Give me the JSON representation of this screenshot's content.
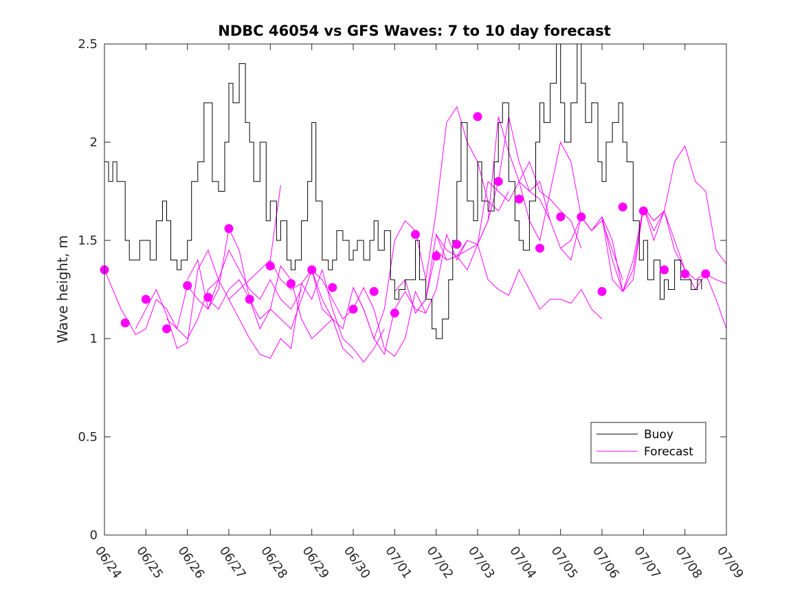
{
  "chart_data": {
    "type": "line",
    "title": "NDBC 46054 vs GFS Waves: 7 to 10 day forecast",
    "xlabel": "",
    "ylabel": "Wave height, m",
    "x_ticks": [
      "06/24",
      "06/25",
      "06/26",
      "06/27",
      "06/28",
      "06/29",
      "06/30",
      "07/01",
      "07/02",
      "07/03",
      "07/04",
      "07/05",
      "07/06",
      "07/07",
      "07/08",
      "07/09"
    ],
    "xlim": [
      0,
      15
    ],
    "ylim": [
      0,
      2.5
    ],
    "y_ticks": [
      0,
      0.5,
      1,
      1.5,
      2,
      2.5
    ],
    "y_tick_labels": [
      "0",
      "0.5",
      "1",
      "1.5",
      "2",
      "2.5"
    ],
    "grid": false,
    "legend": {
      "placement": "lower-right",
      "entries": [
        "Buoy",
        "Forecast"
      ]
    },
    "colors": {
      "buoy": "#000000",
      "forecast": "#ff00ff"
    },
    "series": [
      {
        "name": "Buoy",
        "x": [
          0,
          0.1,
          0.2,
          0.3,
          0.4,
          0.5,
          0.6,
          0.75,
          0.85,
          1.0,
          1.1,
          1.25,
          1.4,
          1.5,
          1.6,
          1.75,
          1.85,
          2.0,
          2.1,
          2.25,
          2.4,
          2.6,
          2.75,
          2.9,
          3.0,
          3.1,
          3.25,
          3.4,
          3.5,
          3.6,
          3.75,
          3.9,
          4.0,
          4.15,
          4.25,
          4.4,
          4.5,
          4.6,
          4.75,
          4.9,
          5.0,
          5.1,
          5.25,
          5.4,
          5.5,
          5.6,
          5.75,
          5.9,
          6.0,
          6.1,
          6.25,
          6.4,
          6.5,
          6.6,
          6.75,
          6.9,
          7.0,
          7.1,
          7.25,
          7.4,
          7.5,
          7.6,
          7.75,
          7.9,
          8.0,
          8.15,
          8.3,
          8.4,
          8.5,
          8.6,
          8.75,
          8.9,
          9.0,
          9.1,
          9.25,
          9.4,
          9.5,
          9.6,
          9.75,
          9.9,
          10.0,
          10.1,
          10.25,
          10.4,
          10.5,
          10.6,
          10.75,
          10.9,
          11.0,
          11.1,
          11.25,
          11.4,
          11.5,
          11.6,
          11.75,
          11.9,
          12.0,
          12.1,
          12.25,
          12.4,
          12.5,
          12.6,
          12.75,
          12.9,
          13.0,
          13.1,
          13.25,
          13.4,
          13.5,
          13.6,
          13.75,
          13.9,
          14.0,
          14.15,
          14.3,
          14.4
        ],
        "values": [
          1.9,
          1.8,
          1.9,
          1.8,
          1.8,
          1.5,
          1.4,
          1.4,
          1.5,
          1.5,
          1.4,
          1.6,
          1.7,
          1.6,
          1.4,
          1.35,
          1.4,
          1.5,
          1.8,
          1.9,
          2.2,
          1.8,
          1.75,
          2.0,
          2.3,
          2.2,
          2.4,
          2.1,
          2.0,
          1.8,
          2.0,
          1.6,
          1.7,
          1.5,
          1.6,
          1.4,
          1.35,
          1.4,
          1.6,
          1.8,
          2.1,
          1.7,
          1.4,
          1.35,
          1.4,
          1.55,
          1.5,
          1.4,
          1.45,
          1.5,
          1.4,
          1.5,
          1.6,
          1.45,
          1.55,
          1.3,
          1.2,
          1.25,
          1.3,
          1.3,
          1.5,
          1.3,
          1.2,
          1.05,
          1.0,
          1.1,
          1.3,
          1.5,
          1.8,
          2.1,
          1.7,
          1.6,
          1.9,
          1.7,
          1.65,
          1.9,
          2.1,
          2.2,
          1.8,
          1.6,
          1.5,
          1.45,
          1.7,
          2.0,
          2.2,
          2.1,
          2.3,
          2.5,
          2.2,
          2.0,
          2.2,
          2.5,
          2.3,
          2.1,
          2.2,
          1.9,
          1.8,
          2.0,
          2.1,
          2.2,
          2.0,
          1.9,
          1.6,
          1.4,
          1.5,
          1.3,
          1.4,
          1.2,
          1.3,
          1.25,
          1.4,
          1.3,
          1.3,
          1.25,
          1.3,
          1.25
        ]
      },
      {
        "name": "Forecast",
        "runs": [
          {
            "x": [
              0,
              0.2,
              0.4,
              0.6,
              0.75,
              1.0,
              1.25,
              1.5,
              1.75,
              2.0,
              2.25,
              2.5,
              2.75
            ],
            "values": [
              1.35,
              1.25,
              1.15,
              1.08,
              1.02,
              1.05,
              1.2,
              1.15,
              1.05,
              1.0,
              1.1,
              1.25,
              1.3
            ]
          },
          {
            "x": [
              0.75,
              1.0,
              1.25,
              1.5,
              1.75,
              2.0,
              2.25,
              2.5,
              2.75,
              3.0,
              3.25,
              3.5,
              3.75,
              4.0,
              4.25
            ],
            "values": [
              1.05,
              1.15,
              1.25,
              1.12,
              0.95,
              0.98,
              1.35,
              1.45,
              1.3,
              1.2,
              1.25,
              1.3,
              1.35,
              1.4,
              1.78
            ]
          },
          {
            "x": [
              1.5,
              1.75,
              2.0,
              2.25,
              2.5,
              2.75,
              3.0,
              3.25,
              3.5,
              3.75,
              4.0,
              4.25,
              4.5,
              4.75
            ],
            "values": [
              1.1,
              1.05,
              1.27,
              1.2,
              1.15,
              1.3,
              1.45,
              1.35,
              1.25,
              1.2,
              1.3,
              1.2,
              1.15,
              1.25
            ]
          },
          {
            "x": [
              2.0,
              2.25,
              2.5,
              2.75,
              3.0,
              3.25,
              3.5,
              3.75,
              4.0,
              4.25,
              4.5,
              4.75,
              5.0,
              5.25,
              5.5
            ],
            "values": [
              1.3,
              1.4,
              1.15,
              1.25,
              1.56,
              1.45,
              1.2,
              1.1,
              1.15,
              1.1,
              1.05,
              1.2,
              1.35,
              1.15,
              1.1
            ]
          },
          {
            "x": [
              2.5,
              2.75,
              3.0,
              3.25,
              3.5,
              3.75,
              4.0,
              4.25,
              4.5,
              4.75,
              5.0,
              5.25,
              5.5,
              5.75,
              6.0
            ],
            "values": [
              1.2,
              1.15,
              1.25,
              1.3,
              1.2,
              1.05,
              1.15,
              1.37,
              1.3,
              1.1,
              1.0,
              1.05,
              1.1,
              0.95,
              0.9
            ]
          },
          {
            "x": [
              3.0,
              3.25,
              3.5,
              3.75,
              4.0,
              4.25,
              4.5,
              4.75,
              5.0,
              5.25,
              5.5,
              5.75,
              6.0,
              6.25,
              6.5,
              6.75
            ],
            "values": [
              1.2,
              1.1,
              1.0,
              0.92,
              0.9,
              1.0,
              0.95,
              1.28,
              1.2,
              1.35,
              1.15,
              1.0,
              0.95,
              0.88,
              0.95,
              1.05
            ]
          },
          {
            "x": [
              4.0,
              4.25,
              4.5,
              4.75,
              5.0,
              5.25,
              5.5,
              5.75,
              6.0,
              6.25,
              6.5,
              6.75,
              7.0,
              7.25,
              7.5,
              7.75
            ],
            "values": [
              1.4,
              1.3,
              1.25,
              1.28,
              1.35,
              1.2,
              1.1,
              1.05,
              1.26,
              1.15,
              1.0,
              0.92,
              1.15,
              1.24,
              1.15,
              1.13
            ]
          },
          {
            "x": [
              5.0,
              5.25,
              5.5,
              5.75,
              6.0,
              6.25,
              6.5,
              6.75,
              7.0,
              7.25,
              7.5,
              7.75,
              8.0,
              8.25,
              8.5,
              8.75
            ],
            "values": [
              1.35,
              1.3,
              1.2,
              1.1,
              1.15,
              1.26,
              1.15,
              0.95,
              0.91,
              1.0,
              1.24,
              1.13,
              1.25,
              1.53,
              1.4,
              1.5
            ]
          },
          {
            "x": [
              6.0,
              6.25,
              6.5,
              6.75,
              7.0,
              7.25,
              7.5,
              7.75,
              8.0,
              8.25,
              8.5,
              8.75,
              9.0,
              9.25,
              9.5,
              9.75
            ],
            "values": [
              1.26,
              1.15,
              1.0,
              1.15,
              1.5,
              1.6,
              1.55,
              1.3,
              1.65,
              2.1,
              2.18,
              2.0,
              1.9,
              1.7,
              1.65,
              1.75
            ]
          },
          {
            "x": [
              7.0,
              7.25,
              7.5,
              7.75,
              8.0,
              8.25,
              8.5,
              8.75,
              9.0,
              9.25,
              9.5,
              9.75,
              10.0,
              10.25,
              10.5,
              10.75
            ],
            "values": [
              1.24,
              1.3,
              1.13,
              1.2,
              1.53,
              1.4,
              1.42,
              1.45,
              1.48,
              1.6,
              1.8,
              2.13,
              1.9,
              1.75,
              1.8,
              1.6
            ]
          },
          {
            "x": [
              7.5,
              7.75,
              8.0,
              8.25,
              8.5,
              8.75,
              9.0,
              9.25,
              9.5,
              9.75,
              10.0,
              10.25,
              10.5,
              10.75,
              11.0,
              11.25,
              11.5
            ],
            "values": [
              1.13,
              1.2,
              1.45,
              1.4,
              1.42,
              1.5,
              1.48,
              1.8,
              1.75,
              1.7,
              1.8,
              1.9,
              1.75,
              1.71,
              1.65,
              1.6,
              1.46
            ]
          },
          {
            "x": [
              8.0,
              8.25,
              8.5,
              8.75,
              9.0,
              9.25,
              9.5,
              9.75,
              10.0,
              10.25,
              10.5,
              10.75,
              11.0,
              11.25,
              11.5,
              11.75,
              12.0
            ],
            "values": [
              1.53,
              1.45,
              1.42,
              1.35,
              1.48,
              1.3,
              1.25,
              1.22,
              1.35,
              1.25,
              1.15,
              1.2,
              1.2,
              1.18,
              1.25,
              1.15,
              1.1
            ]
          },
          {
            "x": [
              9.0,
              9.25,
              9.5,
              9.75,
              10.0,
              10.25,
              10.5,
              10.75,
              11.0,
              11.25,
              11.5,
              11.75,
              12.0,
              12.25,
              12.5
            ],
            "values": [
              1.48,
              1.6,
              2.13,
              1.95,
              1.8,
              1.6,
              1.5,
              1.75,
              2.0,
              1.9,
              1.62,
              1.55,
              1.6,
              1.45,
              1.3
            ]
          },
          {
            "x": [
              10.0,
              10.25,
              10.5,
              10.75,
              11.0,
              11.25,
              11.5,
              11.75,
              12.0,
              12.25,
              12.5,
              12.75,
              13.0,
              13.25,
              13.5
            ],
            "values": [
              1.8,
              1.75,
              1.71,
              1.6,
              1.46,
              1.5,
              1.62,
              1.55,
              1.62,
              1.3,
              1.24,
              1.4,
              1.67,
              1.6,
              1.65
            ]
          },
          {
            "x": [
              11.0,
              11.25,
              11.5,
              11.75,
              12.0,
              12.25,
              12.5,
              12.75,
              13.0,
              13.25,
              13.5,
              13.75,
              14.0,
              14.25,
              14.5,
              14.75,
              15.0
            ],
            "values": [
              1.46,
              1.4,
              1.62,
              1.55,
              1.62,
              1.5,
              1.24,
              1.35,
              1.67,
              1.55,
              1.65,
              1.45,
              1.35,
              1.25,
              1.33,
              1.2,
              1.05
            ]
          },
          {
            "x": [
              12.0,
              12.25,
              12.5,
              12.75,
              13.0,
              13.25,
              13.5,
              13.75,
              14.0,
              14.25,
              14.5,
              14.75,
              15.0
            ],
            "values": [
              1.62,
              1.4,
              1.24,
              1.3,
              1.67,
              1.5,
              1.65,
              1.5,
              1.35,
              1.3,
              1.33,
              1.3,
              1.28
            ]
          },
          {
            "x": [
              13.0,
              13.25,
              13.5,
              13.75,
              14.0,
              14.25,
              14.5,
              14.75,
              15.0
            ],
            "values": [
              1.67,
              1.6,
              1.65,
              1.9,
              1.98,
              1.8,
              1.75,
              1.45,
              1.38
            ]
          }
        ]
      }
    ],
    "forecast_markers": {
      "x": [
        0.0,
        0.5,
        1.0,
        1.5,
        2.0,
        2.5,
        3.0,
        3.5,
        4.0,
        4.5,
        5.0,
        5.5,
        6.0,
        6.5,
        7.0,
        7.5,
        8.0,
        8.5,
        9.0,
        9.5,
        10.0,
        10.5,
        11.0,
        11.5,
        12.0,
        12.5,
        13.0,
        13.5,
        14.0,
        14.5
      ],
      "values": [
        1.35,
        1.08,
        1.2,
        1.05,
        1.27,
        1.21,
        1.56,
        1.2,
        1.37,
        1.28,
        1.35,
        1.26,
        1.15,
        1.24,
        1.13,
        1.53,
        1.42,
        1.48,
        2.13,
        1.8,
        1.71,
        1.46,
        1.62,
        1.62,
        1.24,
        1.67,
        1.65,
        1.35,
        1.33,
        1.33
      ]
    }
  }
}
